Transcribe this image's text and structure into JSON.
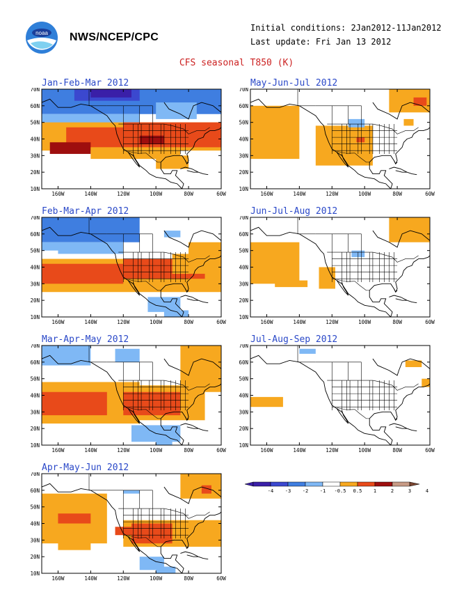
{
  "header": {
    "agency": "NWS/NCEP/CPC",
    "initial_conditions": "Initial conditions: 2Jan2012-11Jan2012",
    "last_update": "Last update: Fri Jan 13 2012",
    "title": "CFS seasonal T850 (K)",
    "logo_icon": "noaa-logo-icon"
  },
  "axes": {
    "lat_labels": [
      "70N",
      "60N",
      "50N",
      "40N",
      "30N",
      "20N",
      "10N"
    ],
    "lon_labels": [
      "160W",
      "140W",
      "120W",
      "100W",
      "80W",
      "60W"
    ]
  },
  "panels": [
    {
      "title": "Jan-Feb-Mar 2012"
    },
    {
      "title": "May-Jun-Jul 2012"
    },
    {
      "title": "Feb-Mar-Apr 2012"
    },
    {
      "title": "Jun-Jul-Aug 2012"
    },
    {
      "title": "Mar-Apr-May 2012"
    },
    {
      "title": "Jul-Aug-Sep 2012"
    },
    {
      "title": "Apr-May-Jun 2012"
    }
  ],
  "legend": {
    "labels": [
      "-4",
      "-3",
      "-2",
      "-1",
      "-0.5",
      "0.5",
      "1",
      "2",
      "3",
      "4"
    ],
    "colors": [
      "#3a1fa8",
      "#3b48cf",
      "#3f7ee0",
      "#7fb8f5",
      "#ffffff",
      "#f7a81f",
      "#e84a1a",
      "#9e0e0e",
      "#c79a85",
      "#7a4530"
    ]
  },
  "colors": {
    "title_red": "#cc2222",
    "panel_title_blue": "#2a48c8",
    "ocean": "#ffffff",
    "coast": "#000000"
  }
}
